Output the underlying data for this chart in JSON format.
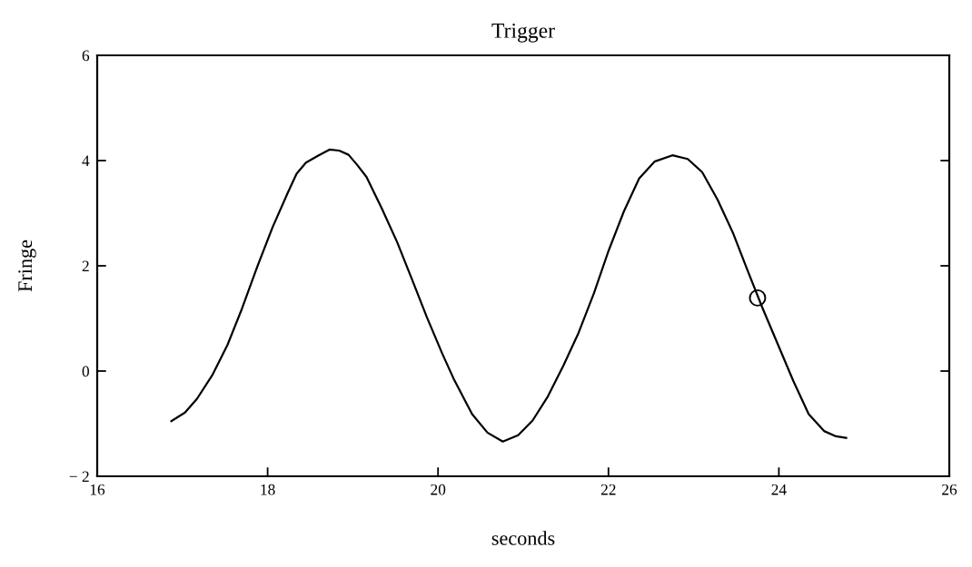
{
  "chart_data": {
    "type": "line",
    "title": "Trigger",
    "xlabel": "seconds",
    "ylabel": "Fringe",
    "xlim": [
      16,
      26
    ],
    "xticks": [
      16,
      18,
      20,
      22,
      24,
      26
    ],
    "ylim": [
      -2,
      6
    ],
    "yticks": [
      {
        "value": -2,
        "label": "− 2"
      },
      0,
      2,
      4,
      6
    ],
    "series": [
      {
        "color": "#000000",
        "line_style": "solid",
        "x": [
          16.87,
          17.03,
          17.17,
          17.35,
          17.53,
          17.7,
          17.88,
          18.06,
          18.24,
          18.34,
          18.45,
          18.59,
          18.73,
          18.84,
          18.95,
          19.05,
          19.16,
          19.34,
          19.52,
          19.69,
          19.87,
          20.05,
          20.19,
          20.4,
          20.58,
          20.76,
          20.94,
          21.11,
          21.29,
          21.47,
          21.65,
          21.83,
          22.0,
          22.18,
          22.36,
          22.54,
          22.75,
          22.93,
          23.1,
          23.28,
          23.46,
          23.64,
          23.81,
          23.99,
          24.17,
          24.35,
          24.53,
          24.67,
          24.79
        ],
        "values": [
          -0.95,
          -0.79,
          -0.53,
          -0.08,
          0.5,
          1.19,
          1.99,
          2.74,
          3.4,
          3.75,
          3.96,
          4.09,
          4.21,
          4.19,
          4.11,
          3.92,
          3.69,
          3.09,
          2.45,
          1.76,
          1.02,
          0.33,
          -0.17,
          -0.82,
          -1.17,
          -1.34,
          -1.22,
          -0.94,
          -0.48,
          0.1,
          0.73,
          1.48,
          2.28,
          3.03,
          3.66,
          3.98,
          4.1,
          4.03,
          3.78,
          3.26,
          2.63,
          1.88,
          1.19,
          0.5,
          -0.19,
          -0.82,
          -1.14,
          -1.24,
          -1.27
        ]
      },
      {
        "type": "scatter",
        "color": "#000000",
        "marker": "circle",
        "x": [
          23.75
        ],
        "values": [
          1.39
        ]
      }
    ]
  }
}
